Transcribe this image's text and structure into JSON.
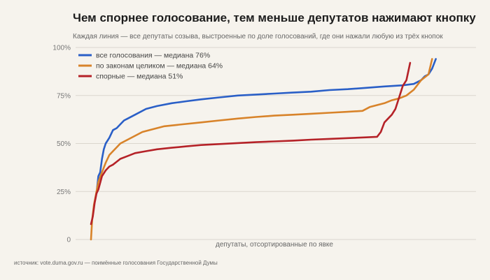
{
  "title": "Чем спорнее голосование, тем меньше депутатов нажимают кнопку",
  "subtitle": "Каждая линия — все депутаты созыва, выстроенные по доле голосований, где они нажали любую из трёх кнопок",
  "source": "источник: vote.duma.gov.ru — поимённые голосования Государственной Думы",
  "chart_data": {
    "type": "line",
    "xlabel": "депутаты, отсортированные по явке",
    "ylabel": "",
    "xlim": [
      0,
      100
    ],
    "ylim": [
      0,
      100
    ],
    "y_ticks": [
      0,
      25,
      50,
      75,
      100
    ],
    "y_tick_labels": [
      "0",
      "25%",
      "50%",
      "75%",
      "100%"
    ],
    "grid": "horizontal",
    "legend_position": "top-left",
    "series": [
      {
        "name": "все голосования — медиана 76%",
        "color": "#2a5fc7",
        "x": [
          1.5,
          2,
          2.5,
          3,
          3.5,
          4,
          5,
          6,
          7,
          8,
          9,
          10,
          12,
          15,
          18,
          22,
          26,
          30,
          35,
          40,
          45,
          50,
          55,
          60,
          65,
          70,
          75,
          80,
          85,
          88,
          90,
          91,
          92,
          93,
          94
        ],
        "y": [
          24,
          33,
          35,
          42,
          47,
          50,
          53,
          57,
          58,
          60,
          62,
          63,
          65,
          68,
          69.5,
          71,
          72,
          73,
          74,
          75,
          75.5,
          76,
          76.5,
          77,
          77.8,
          78.3,
          79,
          79.7,
          80.3,
          81,
          83,
          85,
          86,
          89,
          94
        ]
      },
      {
        "name": "по законам целиком — медиана 64%",
        "color": "#d8832a",
        "x": [
          0,
          0.3,
          0.8,
          1.5,
          2,
          3,
          4,
          5,
          6,
          7,
          8,
          10,
          12,
          14,
          16,
          18,
          20,
          25,
          30,
          35,
          40,
          45,
          50,
          55,
          60,
          65,
          70,
          74,
          76,
          78,
          80,
          82,
          84,
          86,
          88,
          90,
          92,
          93
        ],
        "y": [
          0,
          10,
          18,
          25,
          30,
          35,
          40,
          44,
          46,
          48,
          50,
          52,
          54,
          56,
          57,
          58,
          59,
          60,
          61,
          62,
          63,
          63.8,
          64.5,
          65,
          65.5,
          66,
          66.5,
          67,
          69,
          70,
          71,
          72.5,
          73.5,
          75,
          78,
          83,
          86,
          94
        ]
      },
      {
        "name": "спорные — медиана 51%",
        "color": "#b52228",
        "x": [
          0,
          0.5,
          1,
          1.5,
          2,
          3,
          4,
          5,
          6,
          7,
          8,
          10,
          12,
          15,
          18,
          22,
          26,
          30,
          35,
          40,
          45,
          50,
          55,
          60,
          65,
          70,
          75,
          78,
          79,
          80,
          81,
          82,
          83,
          84,
          85,
          86,
          87
        ],
        "y": [
          8,
          12,
          19,
          24,
          26,
          33,
          36,
          38,
          39,
          40.5,
          42,
          43.5,
          45,
          46,
          47,
          47.8,
          48.5,
          49.2,
          49.7,
          50.2,
          50.7,
          51.1,
          51.5,
          52,
          52.4,
          52.8,
          53.2,
          53.5,
          56,
          61,
          63,
          65,
          68,
          74,
          80,
          83,
          92
        ]
      }
    ]
  }
}
